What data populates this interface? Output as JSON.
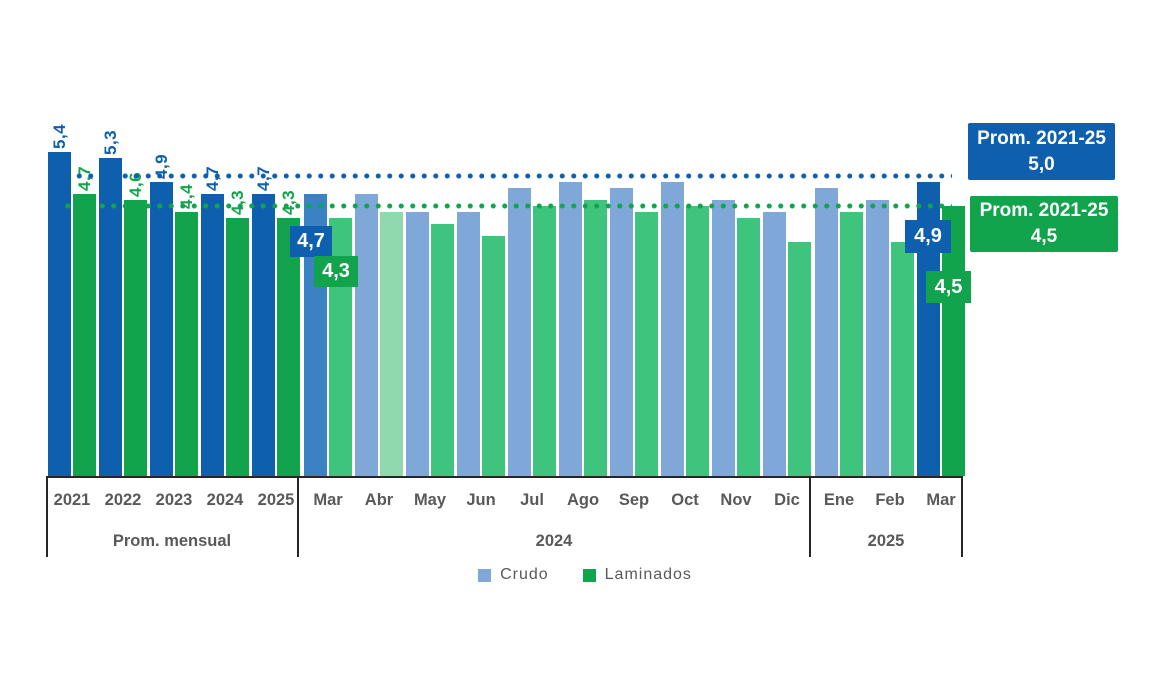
{
  "chart_data": {
    "type": "bar",
    "title": "",
    "series_names": [
      "Crudo",
      "Laminados"
    ],
    "decimal_style": "comma",
    "groups": [
      {
        "label": "Prom. mensual",
        "categories": [
          "2021",
          "2022",
          "2023",
          "2024",
          "2025"
        ],
        "crudo": {
          "values": [
            5.4,
            5.3,
            4.9,
            4.7,
            4.7
          ],
          "labels": [
            "5,4",
            "5,3",
            "4,9",
            "4,7",
            "4,7"
          ],
          "variants": [
            "dark",
            "dark",
            "dark",
            "dark",
            "dark"
          ]
        },
        "laminados": {
          "values": [
            4.7,
            4.6,
            4.4,
            4.3,
            4.3
          ],
          "labels": [
            "4,7",
            "4,6",
            "4,4",
            "4,3",
            "4,3"
          ],
          "variants": [
            "dark",
            "dark",
            "dark",
            "dark",
            "dark"
          ]
        }
      },
      {
        "label": "2024",
        "categories": [
          "Mar",
          "Abr",
          "May",
          "Jun",
          "Jul",
          "Ago",
          "Sep",
          "Oct",
          "Nov",
          "Dic"
        ],
        "crudo": {
          "values": [
            4.7,
            4.7,
            4.4,
            4.4,
            4.8,
            4.9,
            4.8,
            4.9,
            4.6,
            4.4
          ],
          "variants": [
            "medium",
            "light",
            "light",
            "light",
            "light",
            "light",
            "light",
            "light",
            "light",
            "light"
          ]
        },
        "laminados": {
          "values": [
            4.3,
            4.4,
            4.2,
            4.0,
            4.5,
            4.6,
            4.4,
            4.5,
            4.3,
            3.9
          ],
          "variants": [
            "normal",
            "pale",
            "normal",
            "normal",
            "normal",
            "normal",
            "normal",
            "normal",
            "normal",
            "normal"
          ]
        }
      },
      {
        "label": "2025",
        "categories": [
          "Ene",
          "Feb",
          "Mar"
        ],
        "crudo": {
          "values": [
            4.8,
            4.6,
            4.9
          ],
          "variants": [
            "light",
            "light",
            "dark"
          ]
        },
        "laminados": {
          "values": [
            4.4,
            3.9,
            4.5
          ],
          "variants": [
            "normal",
            "normal",
            "dark"
          ]
        }
      }
    ],
    "reference_lines": [
      {
        "series": "Crudo",
        "value": 5.0,
        "style": "dotted",
        "color": "#0E60AE"
      },
      {
        "series": "Laminados",
        "value": 4.5,
        "style": "dotted",
        "color": "#12A44C"
      }
    ],
    "callouts": [
      {
        "group": "2024",
        "category": "Mar",
        "series": "Crudo",
        "text": "4,7"
      },
      {
        "group": "2024",
        "category": "Mar",
        "series": "Laminados",
        "text": "4,3"
      },
      {
        "group": "2025",
        "category": "Mar",
        "series": "Crudo",
        "text": "4,9"
      },
      {
        "group": "2025",
        "category": "Mar",
        "series": "Laminados",
        "text": "4,5"
      }
    ],
    "average_boxes": [
      {
        "line1": "Prom. 2021-25",
        "line2": "5,0",
        "series": "Crudo",
        "color": "#0E60AE"
      },
      {
        "line1": "Prom. 2021-25",
        "line2": "4,5",
        "series": "Laminados",
        "color": "#12A44C"
      }
    ],
    "legend": [
      {
        "label": "Crudo",
        "color": "#7FA8D9"
      },
      {
        "label": "Laminados",
        "color": "#12A44C"
      }
    ],
    "ylim": [
      0,
      5.5
    ],
    "grid": false,
    "legend_position": "bottom-center"
  },
  "colors": {
    "crudo_dark": "#0E60AE",
    "crudo_medium": "#3A82C4",
    "crudo_light": "#7FA8D9",
    "laminados_dark": "#12A44C",
    "laminados_normal": "#3EC47D",
    "laminados_pale": "#90D8AD",
    "axis_text": "#595959",
    "axis_line": "#262626",
    "background": "#FFFFFF"
  }
}
